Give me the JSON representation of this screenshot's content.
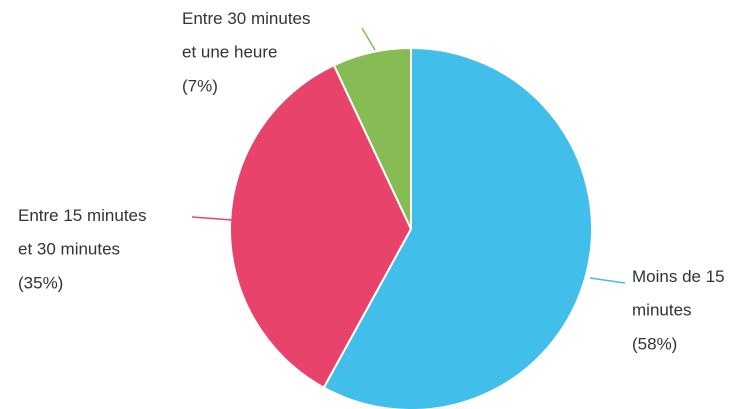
{
  "chart_data": {
    "type": "pie",
    "categories": [
      "Moins de 15 minutes",
      "Entre 15 minutes et 30 minutes",
      "Entre 30 minutes et une heure"
    ],
    "values": [
      58,
      35,
      7
    ],
    "value_labels": [
      "(58%)",
      "(35%)",
      "(7%)"
    ],
    "colors": [
      "#41bee9",
      "#e8436b",
      "#87bb53"
    ]
  }
}
